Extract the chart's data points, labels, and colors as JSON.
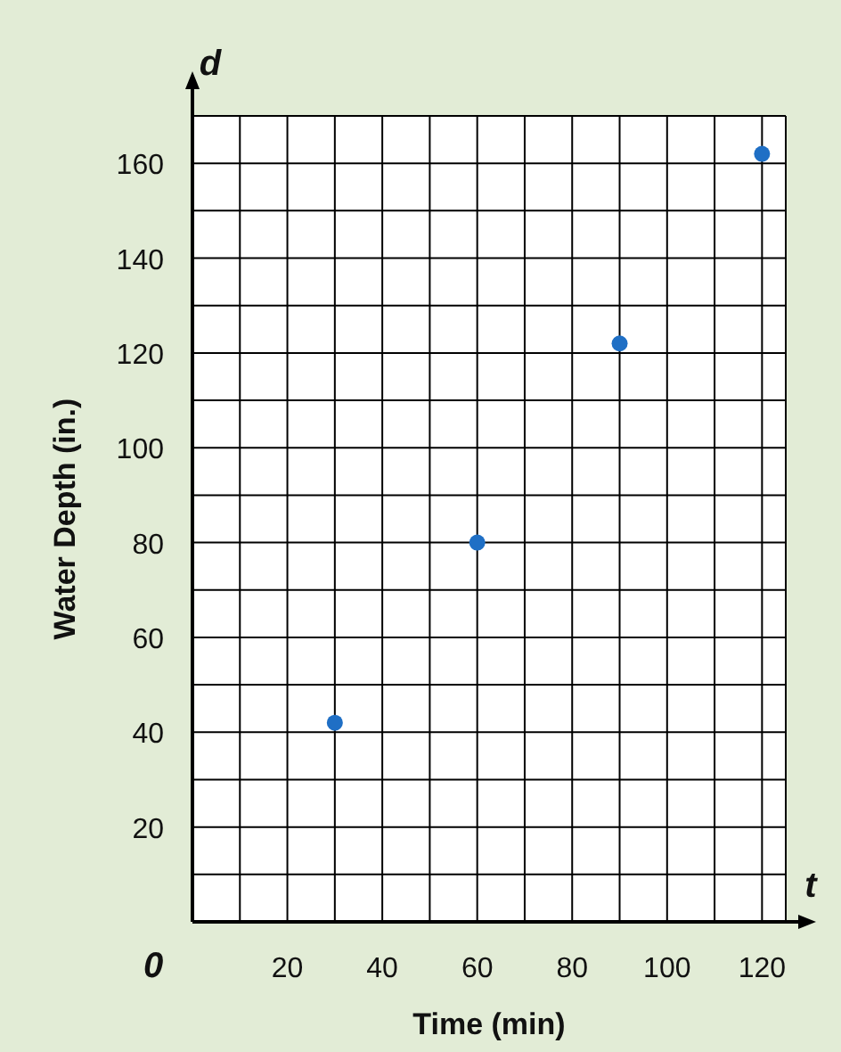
{
  "chart_data": {
    "type": "scatter",
    "xlabel": "Time (min)",
    "ylabel": "Water Depth (in.)",
    "annotations": [
      "t",
      "d",
      "0"
    ],
    "x": [
      30,
      60,
      90,
      120
    ],
    "series": [
      {
        "color": "#1f6fc5",
        "values": [
          42,
          80,
          122,
          162
        ]
      }
    ],
    "xlim": [
      0,
      125
    ],
    "ylim": [
      0,
      170
    ],
    "xticks": [
      {
        "value": 0,
        "label": null
      },
      {
        "value": 10,
        "label": null
      },
      20,
      {
        "value": 30,
        "label": null
      },
      40,
      {
        "value": 50,
        "label": null
      },
      60,
      {
        "value": 70,
        "label": null
      },
      80,
      {
        "value": 90,
        "label": null
      },
      100,
      {
        "value": 110,
        "label": null
      },
      120,
      {
        "value": 125,
        "label": null
      }
    ],
    "yticks": [
      {
        "value": 10,
        "label": null
      },
      20,
      {
        "value": 30,
        "label": null
      },
      40,
      {
        "value": 50,
        "label": null
      },
      60,
      {
        "value": 70,
        "label": null
      },
      80,
      {
        "value": 90,
        "label": null
      },
      100,
      {
        "value": 110,
        "label": null
      },
      120,
      {
        "value": 130,
        "label": null
      },
      140,
      {
        "value": 150,
        "label": null
      },
      160,
      {
        "value": 170,
        "label": null
      }
    ],
    "grid": true,
    "marker": "circle"
  }
}
